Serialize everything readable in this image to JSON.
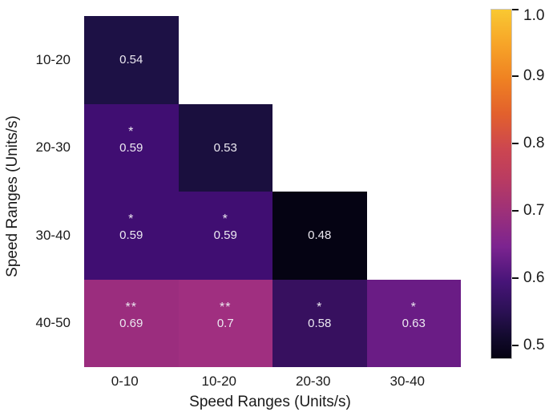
{
  "figure": {
    "background": "#ffffff",
    "axis_text_color": "#1a1a1a"
  },
  "chart_data": {
    "type": "heatmap",
    "title": "",
    "xlabel": "Speed Ranges (Units/s)",
    "ylabel": "Speed Ranges (Units/s)",
    "x_categories": [
      "0-10",
      "10-20",
      "20-30",
      "30-40"
    ],
    "y_categories": [
      "10-20",
      "20-30",
      "30-40",
      "40-50"
    ],
    "shape": "lower-triangular",
    "cell_text_color": "#ece9f1",
    "cells": [
      {
        "row": 0,
        "col": 0,
        "x": "0-10",
        "y": "10-20",
        "value": 0.54,
        "label": "0.54",
        "stars": "",
        "color": "#1d1145"
      },
      {
        "row": 1,
        "col": 0,
        "x": "0-10",
        "y": "20-30",
        "value": 0.59,
        "label": "0.59",
        "stars": "*",
        "color": "#400e72"
      },
      {
        "row": 1,
        "col": 1,
        "x": "10-20",
        "y": "20-30",
        "value": 0.53,
        "label": "0.53",
        "stars": "",
        "color": "#1a0f3e"
      },
      {
        "row": 2,
        "col": 0,
        "x": "0-10",
        "y": "30-40",
        "value": 0.59,
        "label": "0.59",
        "stars": "*",
        "color": "#400e72"
      },
      {
        "row": 2,
        "col": 1,
        "x": "10-20",
        "y": "30-40",
        "value": 0.59,
        "label": "0.59",
        "stars": "*",
        "color": "#400e72"
      },
      {
        "row": 2,
        "col": 2,
        "x": "20-30",
        "y": "30-40",
        "value": 0.48,
        "label": "0.48",
        "stars": "",
        "color": "#050313"
      },
      {
        "row": 3,
        "col": 0,
        "x": "0-10",
        "y": "40-50",
        "value": 0.69,
        "label": "0.69",
        "stars": "**",
        "color": "#9b2d7e"
      },
      {
        "row": 3,
        "col": 1,
        "x": "10-20",
        "y": "40-50",
        "value": 0.7,
        "label": "0.7",
        "stars": "**",
        "color": "#a02f80"
      },
      {
        "row": 3,
        "col": 2,
        "x": "20-30",
        "y": "40-50",
        "value": 0.58,
        "label": "0.58",
        "stars": "*",
        "color": "#37105f"
      },
      {
        "row": 3,
        "col": 3,
        "x": "30-40",
        "y": "40-50",
        "value": 0.63,
        "label": "0.63",
        "stars": "*",
        "color": "#6a1c85"
      }
    ],
    "colorbar": {
      "vmin": 0.48,
      "vmax": 1.0,
      "tick_values": [
        1.0,
        0.9,
        0.8,
        0.7,
        0.6,
        0.5
      ],
      "tick_labels": [
        "1.0",
        "0.9",
        "0.8",
        "0.7",
        "0.6",
        "0.5"
      ],
      "gradient_stops": [
        {
          "pos": 0,
          "color": "#f9c832"
        },
        {
          "pos": 10,
          "color": "#f7a428"
        },
        {
          "pos": 20,
          "color": "#ef8122"
        },
        {
          "pos": 30,
          "color": "#e2602d"
        },
        {
          "pos": 40,
          "color": "#cc4650"
        },
        {
          "pos": 48,
          "color": "#bb3c60"
        },
        {
          "pos": 58,
          "color": "#9d3079"
        },
        {
          "pos": 68,
          "color": "#7c2490"
        },
        {
          "pos": 78,
          "color": "#471478"
        },
        {
          "pos": 86,
          "color": "#2d1157"
        },
        {
          "pos": 94,
          "color": "#120a2d"
        },
        {
          "pos": 100,
          "color": "#050212"
        }
      ]
    }
  }
}
